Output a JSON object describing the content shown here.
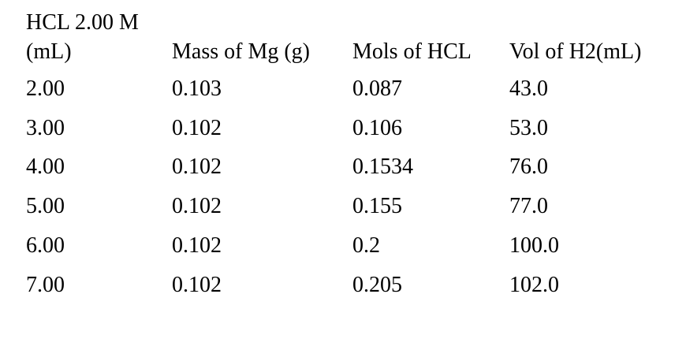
{
  "table": {
    "header": {
      "col1_line1": "HCL 2.00 M",
      "col1_line2": "(mL)",
      "col2": "Mass of Mg (g)",
      "col3": "Mols of HCL",
      "col4": "Vol of H2(mL)"
    },
    "rows": [
      [
        "2.00",
        "0.103",
        "0.087",
        "43.0"
      ],
      [
        "3.00",
        "0.102",
        "0.106",
        "53.0"
      ],
      [
        "4.00",
        "0.102",
        "0.1534",
        "76.0"
      ],
      [
        "5.00",
        "0.102",
        "0.155",
        "77.0"
      ],
      [
        "6.00",
        "0.102",
        "0.2",
        "100.0"
      ],
      [
        "7.00",
        "0.102",
        "0.205",
        "102.0"
      ]
    ]
  }
}
